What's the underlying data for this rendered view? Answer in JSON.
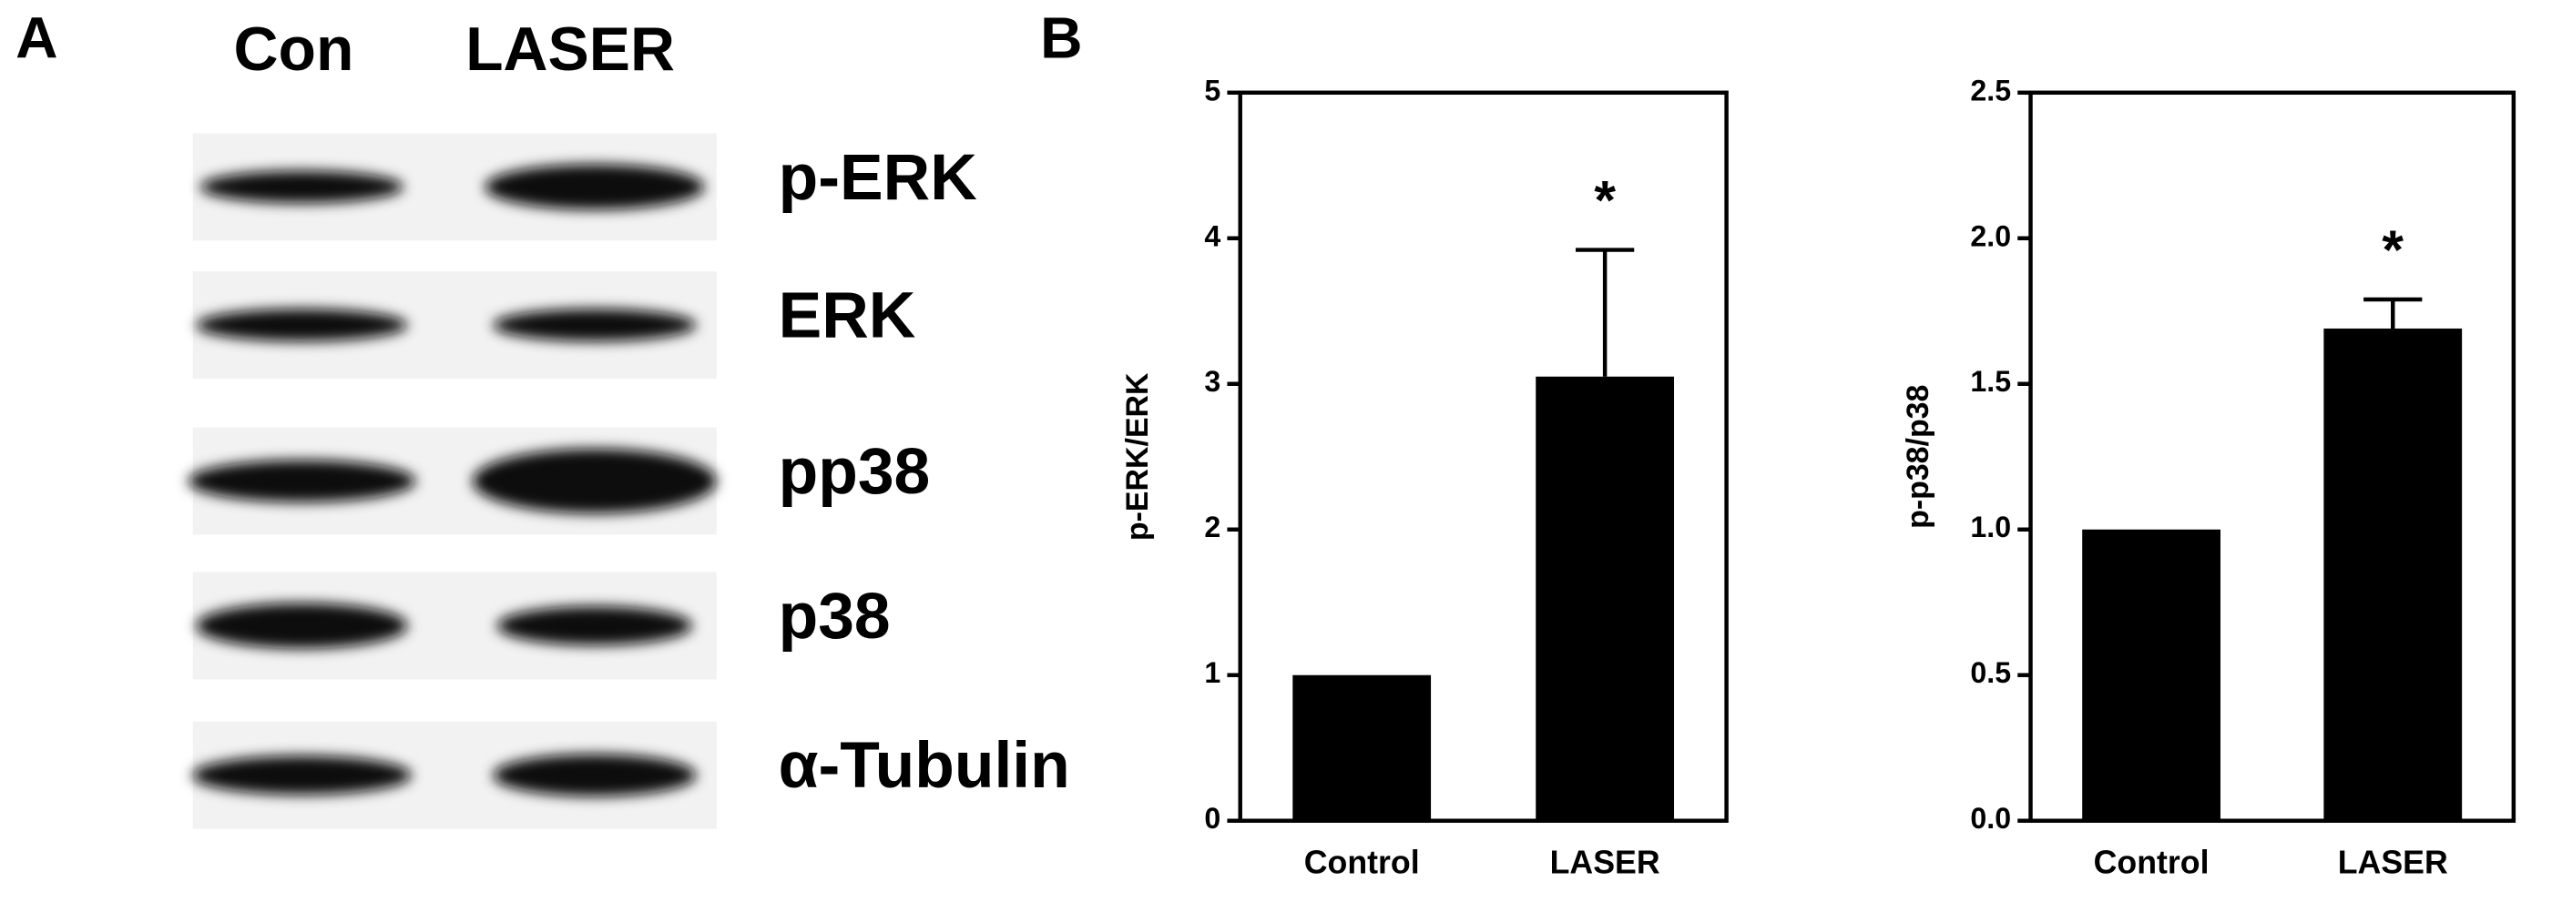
{
  "panel_a": {
    "label": "A",
    "columns": [
      "Con",
      "LASER"
    ],
    "rows": [
      "p-ERK",
      "ERK",
      "pp38",
      "p38",
      "α-Tubulin"
    ]
  },
  "panel_b_label": "B",
  "chart_data": [
    {
      "type": "bar",
      "ylabel": "p-ERK/ERK",
      "categories": [
        "Control",
        "LASER"
      ],
      "values": [
        1,
        3.05
      ],
      "errors": [
        0,
        0.87
      ],
      "color": "#000000",
      "annotations": [
        "",
        "*"
      ],
      "ylim": [
        0,
        5
      ],
      "yticks": [
        0,
        1,
        2,
        3,
        4,
        5
      ]
    },
    {
      "type": "bar",
      "ylabel": "p-p38/p38",
      "categories": [
        "Control",
        "LASER"
      ],
      "values": [
        1,
        1.69
      ],
      "errors": [
        0,
        0.1
      ],
      "color": "#000000",
      "annotations": [
        "",
        "*"
      ],
      "ylim": [
        0,
        2.5
      ],
      "yticks": [
        {
          "value": 0,
          "label": "0.0"
        },
        0.5,
        {
          "value": 1,
          "label": "1.0"
        },
        1.5,
        {
          "value": 2,
          "label": "2.0"
        },
        2.5
      ]
    }
  ]
}
